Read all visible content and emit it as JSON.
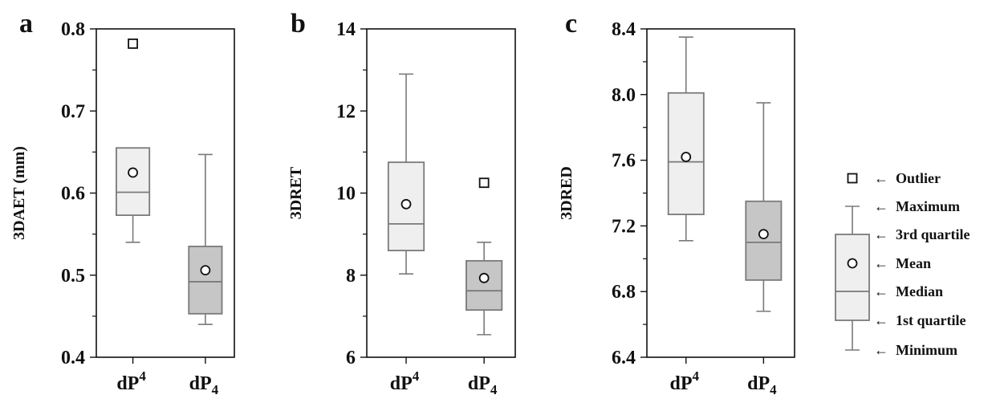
{
  "chart_data": [
    {
      "type": "box",
      "panel": "a",
      "ylabel": "3DAET (mm)",
      "ylim": [
        0.4,
        0.8
      ],
      "yticks": [
        "0.4",
        "0.5",
        "0.6",
        "0.7",
        "0.8"
      ],
      "categories": [
        {
          "base": "dP",
          "script": "4",
          "position": "sup"
        },
        {
          "base": "dP",
          "script": "4",
          "position": "sub"
        }
      ],
      "boxes": [
        {
          "min": 0.54,
          "q1": 0.573,
          "median": 0.601,
          "q3": 0.655,
          "max": 0.655,
          "mean": 0.625,
          "outliers": [
            0.782
          ],
          "color": "#efefef"
        },
        {
          "min": 0.44,
          "q1": 0.453,
          "median": 0.492,
          "q3": 0.535,
          "max": 0.647,
          "mean": 0.506,
          "outliers": [],
          "color": "#c6c6c6"
        }
      ]
    },
    {
      "type": "box",
      "panel": "b",
      "ylabel": "3DRET",
      "ylim": [
        6,
        14
      ],
      "yticks": [
        "6",
        "8",
        "10",
        "12",
        "14"
      ],
      "categories": [
        {
          "base": "dP",
          "script": "4",
          "position": "sup"
        },
        {
          "base": "dP",
          "script": "4",
          "position": "sub"
        }
      ],
      "boxes": [
        {
          "min": 8.03,
          "q1": 8.6,
          "median": 9.25,
          "q3": 10.75,
          "max": 12.9,
          "mean": 9.73,
          "outliers": [],
          "color": "#efefef"
        },
        {
          "min": 6.55,
          "q1": 7.15,
          "median": 7.62,
          "q3": 8.35,
          "max": 8.8,
          "mean": 7.93,
          "outliers": [
            10.25
          ],
          "color": "#c6c6c6"
        }
      ]
    },
    {
      "type": "box",
      "panel": "c",
      "ylabel": "3DRED",
      "ylim": [
        6.4,
        8.4
      ],
      "yticks": [
        "6.4",
        "6.8",
        "7.2",
        "7.6",
        "8.0",
        "8.4"
      ],
      "categories": [
        {
          "base": "dP",
          "script": "4",
          "position": "sup"
        },
        {
          "base": "dP",
          "script": "4",
          "position": "sub"
        }
      ],
      "boxes": [
        {
          "min": 7.11,
          "q1": 7.27,
          "median": 7.59,
          "q3": 8.01,
          "max": 8.35,
          "mean": 7.62,
          "outliers": [],
          "color": "#efefef"
        },
        {
          "min": 6.68,
          "q1": 6.87,
          "median": 7.1,
          "q3": 7.35,
          "max": 7.95,
          "mean": 7.15,
          "outliers": [],
          "color": "#c6c6c6"
        }
      ]
    }
  ],
  "legend": {
    "items": [
      "Outlier",
      "Maximum",
      "3rd quartile",
      "Mean",
      "Median",
      "1st quartile",
      "Minimum"
    ],
    "arrow": "←"
  },
  "colors": {
    "box_light": "#efefef",
    "box_dark": "#c6c6c6",
    "stroke": "#7a7a7a",
    "axis": "#111111"
  }
}
